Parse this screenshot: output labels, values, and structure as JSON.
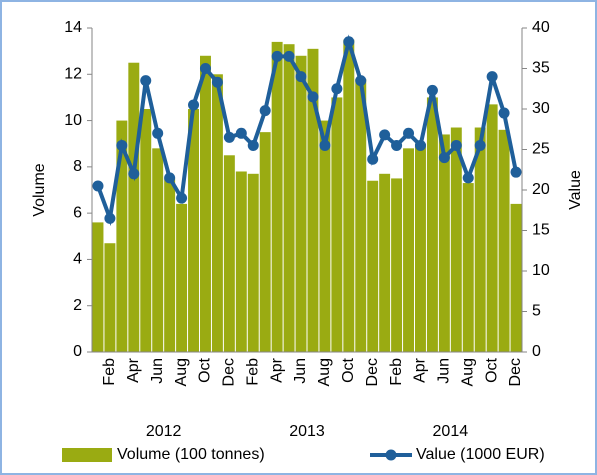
{
  "chart_data": {
    "type": "combo",
    "categories": [
      null,
      "Feb",
      null,
      "Apr",
      null,
      "Jun",
      null,
      "Aug",
      null,
      "Oct",
      null,
      "Dec",
      null,
      "Feb",
      null,
      "Apr",
      null,
      "Jun",
      null,
      "Aug",
      null,
      "Oct",
      null,
      "Dec",
      null,
      "Feb",
      null,
      "Apr",
      null,
      "Jun",
      null,
      "Aug",
      null,
      "Oct",
      null,
      "Dec"
    ],
    "groups": [
      "2012",
      "2013",
      "2014"
    ],
    "series": [
      {
        "name": "Volume (100 tonnes)",
        "type": "bar",
        "color": "#9aab12",
        "axis": "y",
        "values": [
          5.6,
          4.7,
          10.0,
          12.5,
          10.5,
          8.8,
          7.5,
          6.4,
          10.5,
          12.8,
          12.0,
          8.5,
          7.8,
          7.7,
          9.5,
          13.4,
          13.3,
          12.8,
          13.1,
          10.0,
          11.0,
          13.5,
          11.8,
          7.4,
          7.7,
          7.5,
          8.8,
          9.0,
          11.0,
          9.4,
          9.7,
          7.3,
          9.7,
          10.7,
          9.6,
          6.4
        ]
      },
      {
        "name": "Value (1000 EUR)",
        "type": "line",
        "color": "#1f5f9a",
        "axis": "y2",
        "values": [
          20.5,
          16.5,
          25.5,
          22,
          33.5,
          27,
          21.5,
          19,
          30.5,
          35,
          33.3,
          26.5,
          27,
          25.5,
          29.8,
          36.5,
          36.5,
          34,
          31.5,
          25.5,
          32.5,
          38.3,
          33.5,
          23.8,
          26.8,
          25.5,
          27,
          25.5,
          32.3,
          24,
          25.5,
          21.5,
          25.5,
          34,
          29.5,
          22.2
        ]
      }
    ],
    "ylabel": "Volume",
    "y2label": "Value",
    "ylim": [
      0,
      14
    ],
    "yticks": [
      0,
      2,
      4,
      6,
      8,
      10,
      12,
      14
    ],
    "y2lim": [
      0,
      40
    ],
    "y2ticks": [
      0,
      5,
      10,
      15,
      20,
      25,
      30,
      35,
      40
    ],
    "legend": "bottom",
    "grid": false
  }
}
